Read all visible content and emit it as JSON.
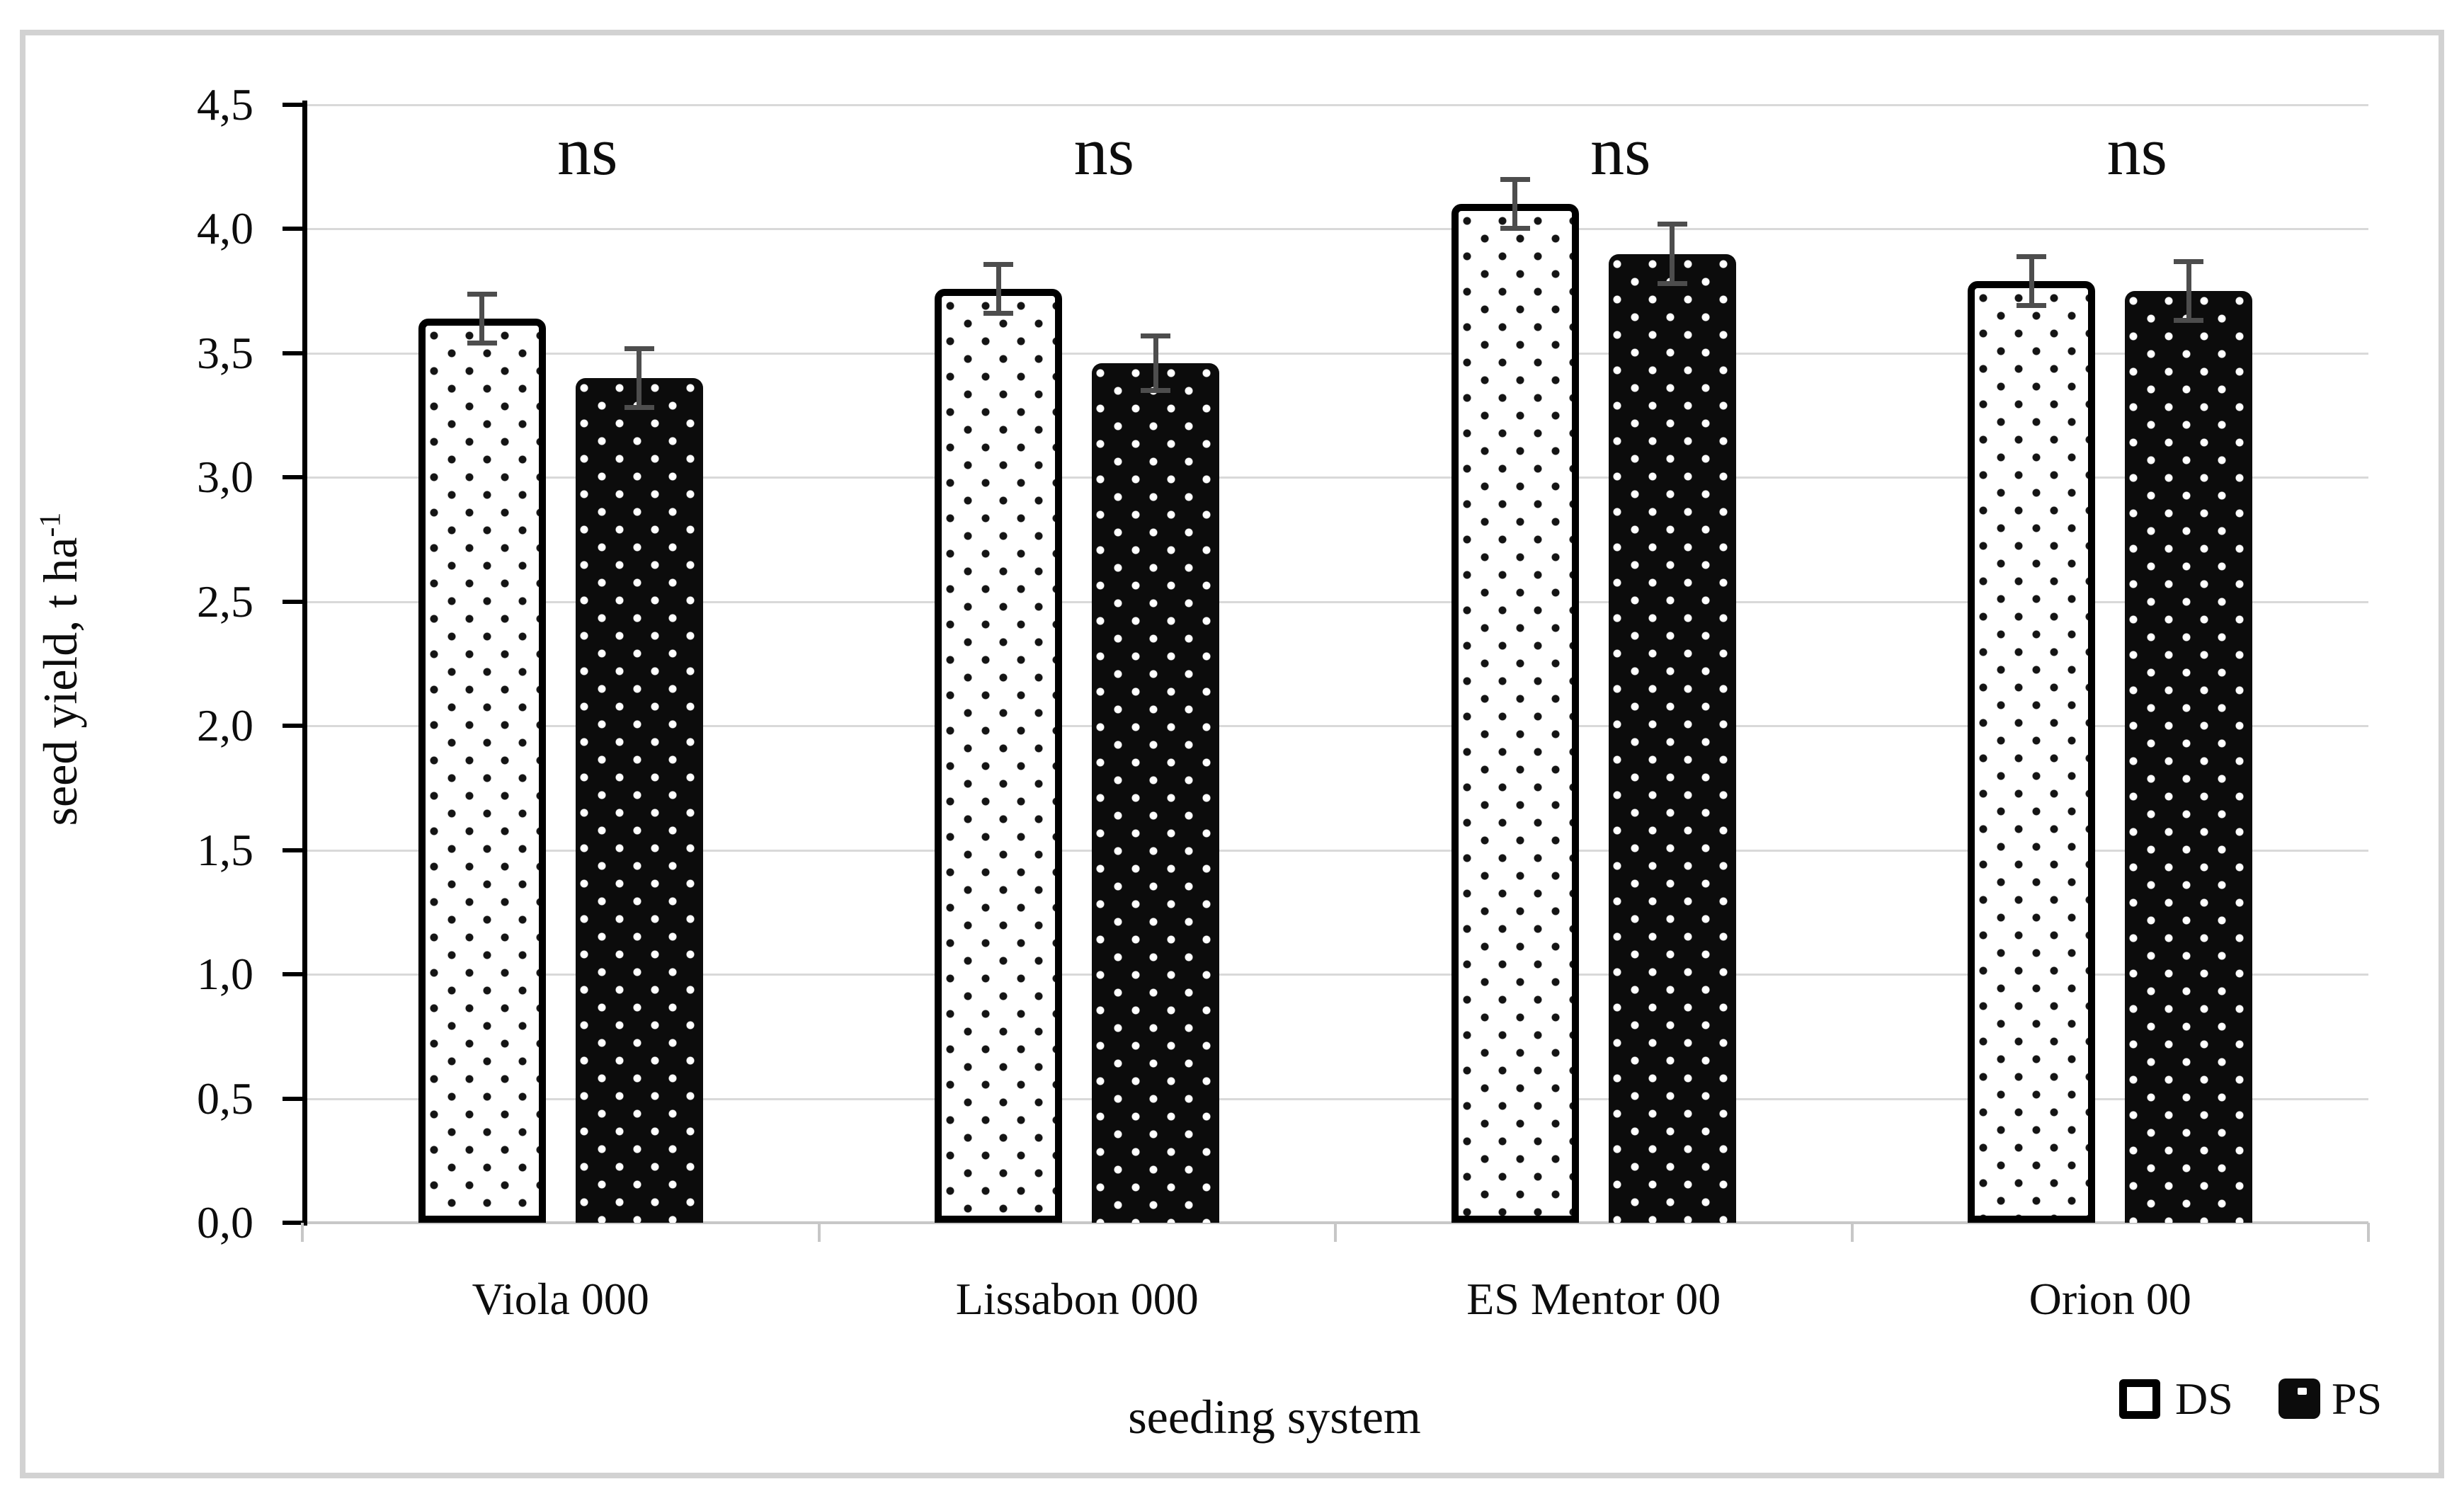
{
  "figure": {
    "background": "#ffffff",
    "frame_color": "#d2d2d2"
  },
  "axes": {
    "y_title": "seed yield, t ha",
    "y_title_superscript": "-1",
    "x_title": "seeding system"
  },
  "legend": {
    "position": "bottom-right",
    "items": [
      {
        "label": "DS",
        "swatch": "white square with black border"
      },
      {
        "label": "PS",
        "swatch": "black square with white dot"
      }
    ]
  },
  "colors": {
    "grid": "#d9d9d9",
    "axis": "#000000",
    "error_bar": "#4d4d4d",
    "text": "#0d0d0d",
    "frame": "#d2d2d2",
    "ds_fill": "#ffffff",
    "ds_dots": "#141414",
    "ps_fill": "#0c0c0c",
    "ps_dots": "#ffffff"
  },
  "chart_data": {
    "type": "bar",
    "title": "",
    "xlabel": "seeding system",
    "ylabel": "seed yield, t ha⁻¹",
    "categories": [
      "Viola 000",
      "Lissabon 000",
      "ES Mentor 00",
      "Orion 00"
    ],
    "series": [
      {
        "name": "DS",
        "values": [
          3.64,
          3.76,
          4.1,
          3.79
        ],
        "errors": [
          0.1,
          0.1,
          0.1,
          0.1
        ],
        "pattern": "white fill, black dots, thick black border"
      },
      {
        "name": "PS",
        "values": [
          3.4,
          3.46,
          3.9,
          3.75
        ],
        "errors": [
          0.12,
          0.11,
          0.12,
          0.12
        ],
        "pattern": "black fill, white dots"
      }
    ],
    "annotations": [
      "ns",
      "ns",
      "ns",
      "ns"
    ],
    "y_ticks": [
      "4,5",
      "4,0",
      "3,5",
      "3,0",
      "2,5",
      "2,0",
      "1,5",
      "1,0",
      "0,5",
      "0,0"
    ],
    "ylim": [
      0,
      4.5
    ],
    "grid": true,
    "decimal_separator": ",",
    "legend_position": "bottom-right"
  }
}
